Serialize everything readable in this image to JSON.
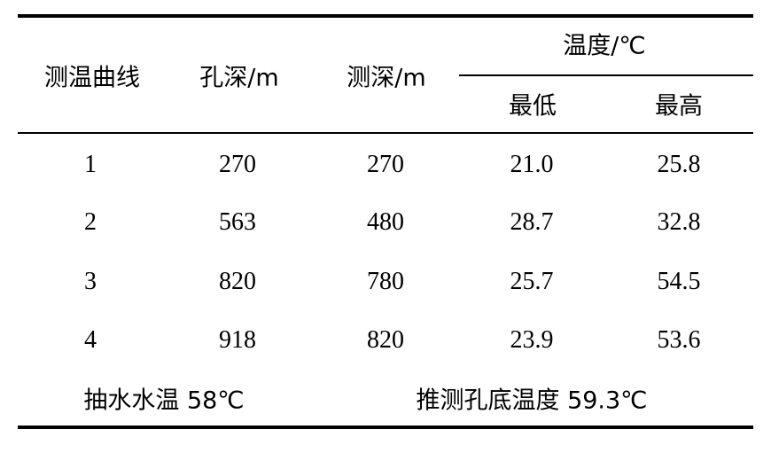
{
  "table": {
    "headers": {
      "curve": "测温曲线",
      "hole_depth": "孔深/m",
      "measured_depth": "测深/m",
      "temperature_group": "温度/℃",
      "min": "最低",
      "max": "最高"
    },
    "rows": [
      {
        "curve": "1",
        "hole_depth": "270",
        "measured_depth": "270",
        "min": "21.0",
        "max": "25.8"
      },
      {
        "curve": "2",
        "hole_depth": "563",
        "measured_depth": "480",
        "min": "28.7",
        "max": "32.8"
      },
      {
        "curve": "3",
        "hole_depth": "820",
        "measured_depth": "780",
        "min": "25.7",
        "max": "54.5"
      },
      {
        "curve": "4",
        "hole_depth": "918",
        "measured_depth": "820",
        "min": "23.9",
        "max": "53.6"
      }
    ],
    "footer": {
      "pump_water_temp": "抽水水温 58℃",
      "inferred_bottom_temp": "推测孔底温度 59.3℃"
    }
  }
}
